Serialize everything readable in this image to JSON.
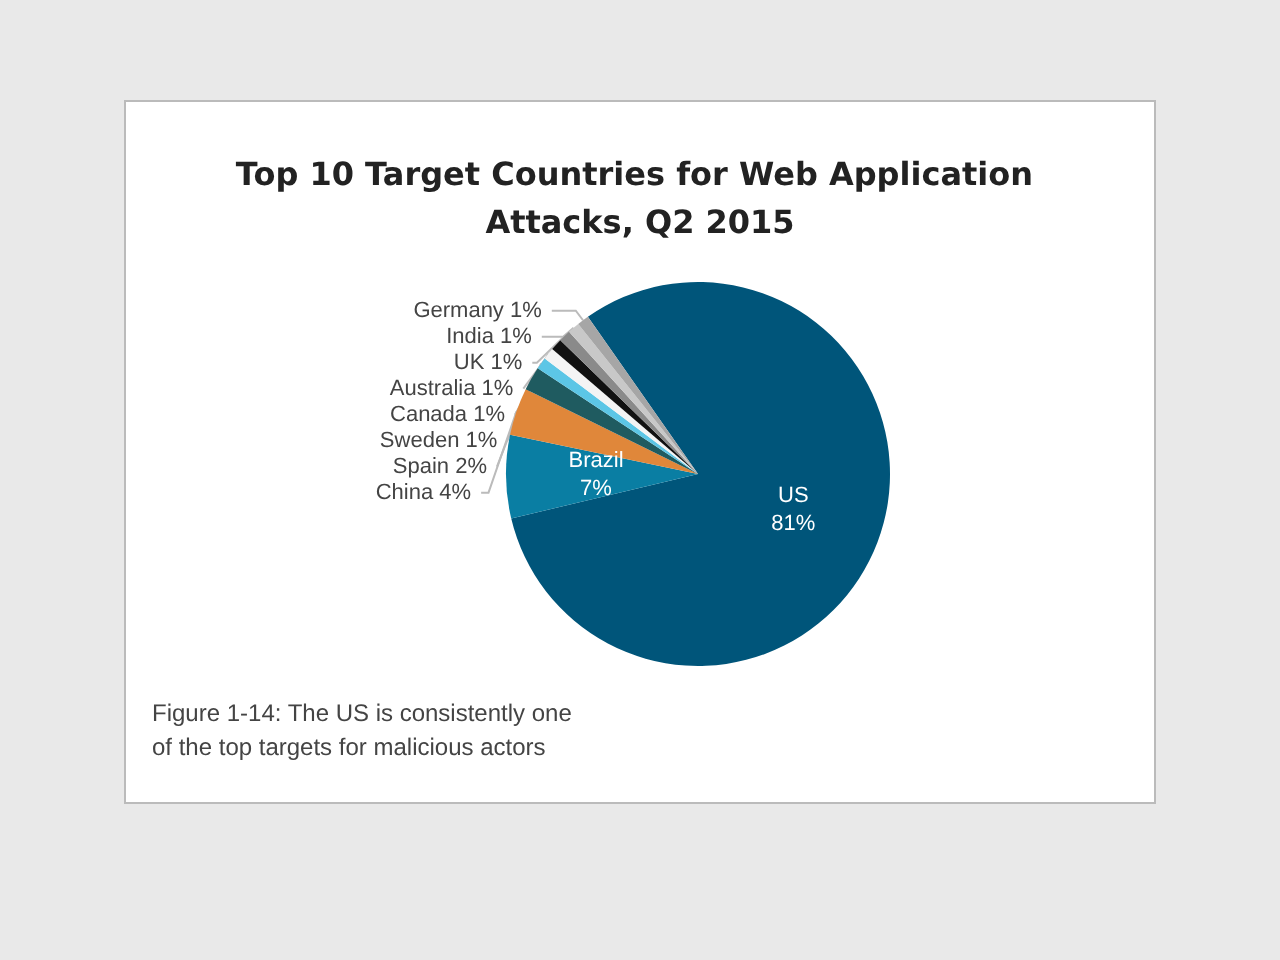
{
  "chart_data": {
    "type": "pie",
    "title": "Top 10 Target Countries for Web Application Attacks, Q2 2015",
    "categories": [
      "US",
      "Brazil",
      "China",
      "Spain",
      "Sweden",
      "Canada",
      "Australia",
      "UK",
      "India",
      "Germany"
    ],
    "values": [
      81,
      7,
      4,
      2,
      1,
      1,
      1,
      1,
      1,
      1
    ],
    "value_labels": [
      "81%",
      "7%",
      "4%",
      "2%",
      "1%",
      "1%",
      "1%",
      "1%",
      "1%",
      "1%"
    ],
    "colors": [
      "#00557a",
      "#0a7ea3",
      "#e0873a",
      "#1f5b60",
      "#5cc6e6",
      "#f4f4f4",
      "#111111",
      "#8a8a8a",
      "#c8c8c8",
      "#a6a6a6"
    ],
    "legend": false,
    "annotations": [
      "Figure 1-14: The US is consistently one of the top targets for malicious actors"
    ]
  }
}
